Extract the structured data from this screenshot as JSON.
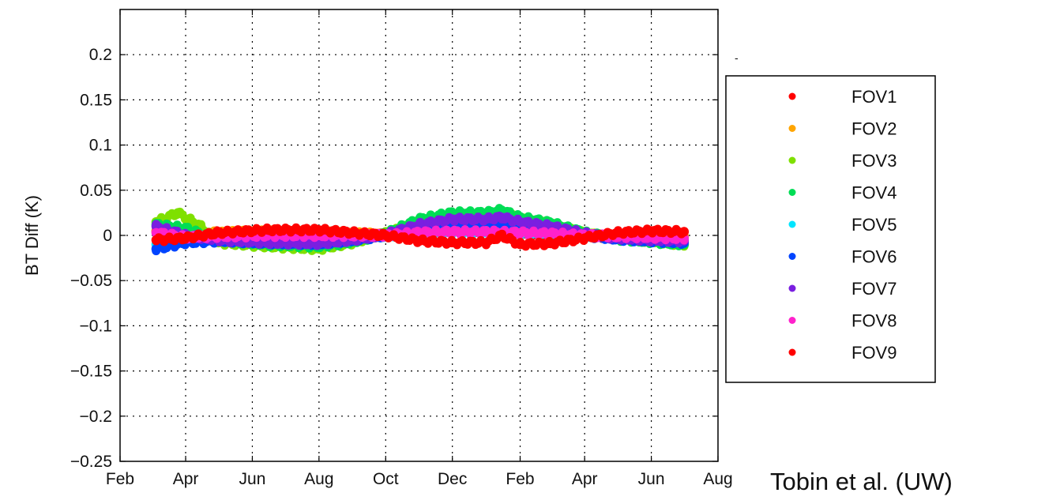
{
  "credit": "Tobin et al. (UW)",
  "chart_data": {
    "type": "scatter",
    "title": "",
    "xlabel": "",
    "ylabel": "BT Diff (K)",
    "ylim": [
      -0.25,
      0.25
    ],
    "yticks": [
      0.2,
      0.15,
      0.1,
      0.05,
      0,
      -0.05,
      -0.1,
      -0.15,
      -0.2,
      -0.25
    ],
    "ytick_labels": [
      "0.2",
      "0.15",
      "0.1",
      "0.05",
      "0",
      "−0.05",
      "−0.1",
      "−0.15",
      "−0.2",
      "−0.25"
    ],
    "xlim": [
      "2012-02-01",
      "2013-08-01"
    ],
    "xticks": [
      "2012-02-01",
      "2012-04-01",
      "2012-06-01",
      "2012-08-01",
      "2012-10-01",
      "2012-12-01",
      "2013-02-01",
      "2013-04-01",
      "2013-06-01",
      "2013-08-01"
    ],
    "xtick_labels": [
      "Feb",
      "Apr",
      "Jun",
      "Aug",
      "Oct",
      "Dec",
      "Feb",
      "Apr",
      "Jun",
      "Aug"
    ],
    "grid": true,
    "legend_position": "right",
    "series": [
      {
        "name": "FOV1",
        "color": "#ff0000",
        "x": [
          "2012-03-05",
          "2012-04-01",
          "2012-05-01",
          "2012-06-15",
          "2012-08-01",
          "2012-09-01",
          "2012-10-01",
          "2012-11-01",
          "2012-12-01",
          "2013-01-01",
          "2013-02-01",
          "2013-03-01",
          "2013-04-01",
          "2013-05-01",
          "2013-06-01",
          "2013-07-01"
        ],
        "y": [
          0.005,
          0.0,
          0.003,
          0.005,
          0.004,
          0.002,
          0.0,
          0.004,
          0.006,
          0.005,
          0.003,
          0.002,
          0.0,
          -0.002,
          -0.003,
          -0.002
        ]
      },
      {
        "name": "FOV2",
        "color": "#ffa500",
        "x": [
          "2012-03-05",
          "2012-04-01",
          "2012-05-01",
          "2012-06-15",
          "2012-08-01",
          "2012-09-01",
          "2012-10-01",
          "2012-11-01",
          "2012-12-01",
          "2013-01-01",
          "2013-02-01",
          "2013-03-01",
          "2013-04-01",
          "2013-05-01",
          "2013-06-01",
          "2013-07-01"
        ],
        "y": [
          0.004,
          0.002,
          0.003,
          0.004,
          0.003,
          0.002,
          0.001,
          0.005,
          0.007,
          0.006,
          0.004,
          0.003,
          0.001,
          -0.001,
          -0.002,
          -0.001
        ]
      },
      {
        "name": "FOV3",
        "color": "#7fe000",
        "x": [
          "2012-03-05",
          "2012-03-25",
          "2012-04-15",
          "2012-05-01",
          "2012-06-15",
          "2012-08-01",
          "2012-09-01",
          "2012-10-01",
          "2012-11-01",
          "2012-12-01",
          "2013-01-01",
          "2013-01-15",
          "2013-02-01",
          "2013-03-01",
          "2013-04-01",
          "2013-05-01",
          "2013-06-01",
          "2013-07-01"
        ],
        "y": [
          0.015,
          0.025,
          0.01,
          -0.008,
          -0.012,
          -0.015,
          -0.008,
          0.002,
          0.015,
          0.022,
          0.02,
          0.025,
          0.018,
          0.012,
          0.002,
          -0.003,
          -0.006,
          -0.01
        ]
      },
      {
        "name": "FOV4",
        "color": "#00dd55",
        "x": [
          "2012-03-05",
          "2012-04-01",
          "2012-05-01",
          "2012-06-15",
          "2012-08-01",
          "2012-09-01",
          "2012-10-01",
          "2012-11-01",
          "2012-12-01",
          "2013-01-01",
          "2013-01-15",
          "2013-02-01",
          "2013-03-01",
          "2013-04-01",
          "2013-05-01",
          "2013-06-01",
          "2013-07-01"
        ],
        "y": [
          0.012,
          0.008,
          -0.005,
          -0.01,
          -0.012,
          -0.007,
          0.002,
          0.018,
          0.025,
          0.025,
          0.028,
          0.02,
          0.014,
          0.003,
          -0.004,
          -0.007,
          -0.01
        ]
      },
      {
        "name": "FOV5",
        "color": "#00e5ff",
        "x": [
          "2012-03-05",
          "2012-04-01",
          "2012-05-01",
          "2012-06-15",
          "2012-08-01",
          "2012-09-01",
          "2012-10-01",
          "2012-11-01",
          "2012-12-01",
          "2013-01-01",
          "2013-02-01",
          "2013-03-01",
          "2013-04-01",
          "2013-05-01",
          "2013-06-01",
          "2013-07-01"
        ],
        "y": [
          -0.01,
          -0.005,
          -0.003,
          -0.002,
          -0.002,
          -0.001,
          0.0,
          0.002,
          0.003,
          0.003,
          0.002,
          0.001,
          0.0,
          -0.002,
          -0.003,
          -0.004
        ]
      },
      {
        "name": "FOV6",
        "color": "#0044ff",
        "x": [
          "2012-03-05",
          "2012-04-01",
          "2012-05-01",
          "2012-06-15",
          "2012-08-01",
          "2012-09-01",
          "2012-10-01",
          "2012-11-01",
          "2012-12-01",
          "2013-01-01",
          "2013-02-01",
          "2013-03-01",
          "2013-04-01",
          "2013-05-01",
          "2013-06-01",
          "2013-07-01"
        ],
        "y": [
          -0.015,
          -0.008,
          -0.006,
          -0.008,
          -0.009,
          -0.005,
          0.0,
          0.008,
          0.012,
          0.014,
          0.01,
          0.006,
          0.0,
          -0.004,
          -0.006,
          -0.008
        ]
      },
      {
        "name": "FOV7",
        "color": "#7a1fe0",
        "x": [
          "2012-03-05",
          "2012-04-01",
          "2012-05-01",
          "2012-06-15",
          "2012-08-01",
          "2012-09-01",
          "2012-10-01",
          "2012-11-01",
          "2012-12-01",
          "2013-01-01",
          "2013-01-15",
          "2013-02-01",
          "2013-03-01",
          "2013-04-01",
          "2013-05-01",
          "2013-06-01",
          "2013-07-01"
        ],
        "y": [
          0.01,
          0.0,
          -0.005,
          -0.008,
          -0.009,
          -0.005,
          0.001,
          0.012,
          0.018,
          0.018,
          0.02,
          0.015,
          0.01,
          0.002,
          -0.003,
          -0.005,
          -0.006
        ]
      },
      {
        "name": "FOV8",
        "color": "#ff22cc",
        "x": [
          "2012-03-05",
          "2012-04-01",
          "2012-05-01",
          "2012-06-15",
          "2012-08-01",
          "2012-09-01",
          "2012-10-01",
          "2012-11-01",
          "2012-12-01",
          "2013-01-01",
          "2013-02-01",
          "2013-03-01",
          "2013-04-01",
          "2013-05-01",
          "2013-06-01",
          "2013-07-01"
        ],
        "y": [
          0.003,
          -0.002,
          -0.001,
          0.0,
          0.0,
          0.0,
          0.0,
          0.003,
          0.004,
          0.004,
          0.003,
          0.002,
          0.0,
          -0.001,
          -0.002,
          -0.003
        ]
      },
      {
        "name": "FOV9",
        "color": "#ff0000",
        "x": [
          "2012-03-05",
          "2012-04-01",
          "2012-05-01",
          "2012-06-15",
          "2012-08-01",
          "2012-09-01",
          "2012-10-01",
          "2012-11-01",
          "2012-12-01",
          "2013-01-01",
          "2013-01-15",
          "2013-02-01",
          "2013-03-01",
          "2013-04-01",
          "2013-05-01",
          "2013-06-01",
          "2013-07-01"
        ],
        "y": [
          -0.005,
          -0.003,
          0.003,
          0.006,
          0.006,
          0.003,
          0.0,
          -0.006,
          -0.008,
          -0.008,
          0.0,
          -0.01,
          -0.009,
          -0.003,
          0.003,
          0.005,
          0.004
        ]
      }
    ]
  }
}
